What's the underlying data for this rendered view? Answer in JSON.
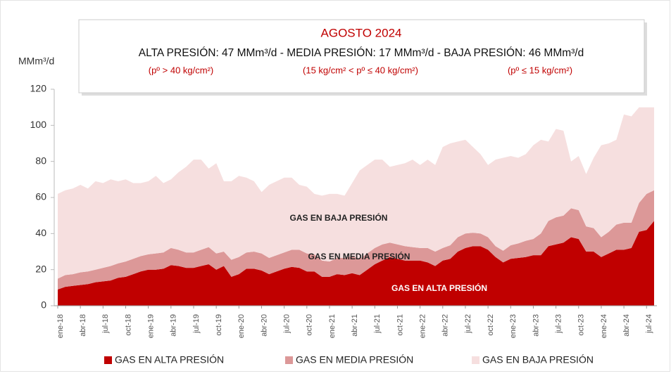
{
  "chart_data": {
    "type": "stacked_area",
    "header": {
      "title": "AGOSTO 2024",
      "summary": "ALTA PRESIÓN: 47 MMm³/d - MEDIA PRESIÓN: 17 MMm³/d - BAJA PRESIÓN: 46 MMm³/d",
      "ranges": [
        "(pº > 40 kg/cm²)",
        "(15 kg/cm² < pº ≤ 40 kg/cm²)",
        "(pº ≤ 15 kg/cm²)"
      ]
    },
    "y_label": "MMm³/d",
    "annotations": [
      "GAS EN BAJA PRESIÓN",
      "GAS EN MEDIA PRESIÓN",
      "GAS EN ALTA PRESIÓN"
    ],
    "categories": [
      "ene-18",
      null,
      null,
      "abr-18",
      null,
      null,
      "jul-18",
      null,
      null,
      "oct-18",
      null,
      null,
      "ene-19",
      null,
      null,
      "abr-19",
      null,
      null,
      "jul-19",
      null,
      null,
      "oct-19",
      null,
      null,
      "ene-20",
      null,
      null,
      "abr-20",
      null,
      null,
      "jul-20",
      null,
      null,
      "oct-20",
      null,
      null,
      "ene-21",
      null,
      null,
      "abr-21",
      null,
      null,
      "jul-21",
      null,
      null,
      "oct-21",
      null,
      null,
      "ene-22",
      null,
      null,
      "abr-22",
      null,
      null,
      "jul-22",
      null,
      null,
      "oct-22",
      null,
      null,
      "ene-23",
      null,
      null,
      "abr-23",
      null,
      null,
      "jul-23",
      null,
      null,
      "oct-23",
      null,
      null,
      "ene-24",
      null,
      null,
      "abr-24",
      null,
      null,
      "jul-24",
      null
    ],
    "series": [
      {
        "name": "GAS EN ALTA PRESIÓN",
        "color": "#c00000",
        "values": [
          9,
          10.5,
          11,
          11.5,
          12,
          13,
          13.5,
          14,
          15.5,
          16,
          17.5,
          19,
          20,
          20,
          20.5,
          22.5,
          22,
          21,
          21,
          22,
          23,
          20,
          22,
          16,
          17.5,
          20.5,
          20.5,
          19.5,
          17.5,
          19,
          20.5,
          21.5,
          21,
          19,
          19,
          16,
          16,
          17.5,
          17,
          18,
          17,
          20,
          23,
          25,
          27,
          26,
          25,
          25,
          25,
          24,
          22,
          25,
          26,
          30,
          32,
          33,
          33,
          31,
          27,
          24,
          26,
          26.5,
          27,
          28,
          28,
          33,
          34,
          35,
          38,
          37,
          30,
          30,
          27,
          29,
          31,
          31,
          32,
          41,
          42,
          47
        ]
      },
      {
        "name": "GAS EN MEDIA PRESIÓN",
        "color": "#dc9898",
        "values": [
          6,
          6.5,
          6.5,
          7,
          7,
          7,
          7.5,
          8,
          8,
          8.5,
          8.5,
          8.5,
          8.5,
          9,
          9,
          9.5,
          9,
          8.5,
          8.5,
          9,
          9.5,
          9,
          8,
          9.5,
          9.5,
          9,
          9.5,
          9.5,
          9,
          9,
          9,
          9.5,
          10,
          10,
          9.5,
          9,
          8.5,
          9,
          9.5,
          9.5,
          9,
          9,
          9,
          9,
          8,
          8,
          8,
          7.5,
          7,
          8,
          8,
          7,
          7.5,
          8,
          8,
          7.5,
          7,
          7,
          6,
          6.5,
          7.5,
          8,
          9,
          9,
          12,
          14,
          15,
          15,
          16,
          16,
          14,
          13,
          11,
          12,
          14,
          15,
          14,
          16,
          20,
          17
        ]
      },
      {
        "name": "GAS EN BAJA PRESIÓN",
        "color": "#f6dfdf",
        "values": [
          47,
          47,
          47.5,
          48.5,
          46,
          49,
          47,
          48,
          45.5,
          45.5,
          42,
          40.5,
          40.5,
          43,
          38.5,
          38,
          43,
          47.5,
          51.5,
          50,
          43.5,
          50,
          39,
          43.5,
          45,
          41.5,
          39,
          34,
          40.5,
          41,
          41.5,
          40,
          36,
          37,
          33.5,
          36,
          37.5,
          35.5,
          34.5,
          40.5,
          49,
          49,
          49,
          47,
          42,
          44,
          46,
          48.5,
          46,
          49,
          48,
          56,
          56.5,
          53,
          52,
          47.5,
          44,
          40,
          48,
          51.5,
          49.5,
          47.5,
          48,
          52,
          52,
          44,
          49,
          47,
          26,
          30,
          29,
          39,
          51,
          49,
          47,
          60,
          59,
          53,
          48,
          46
        ]
      }
    ],
    "ylim": [
      0,
      120
    ],
    "yticks": [
      0,
      20,
      40,
      60,
      80,
      100,
      120
    ],
    "grid": false
  }
}
